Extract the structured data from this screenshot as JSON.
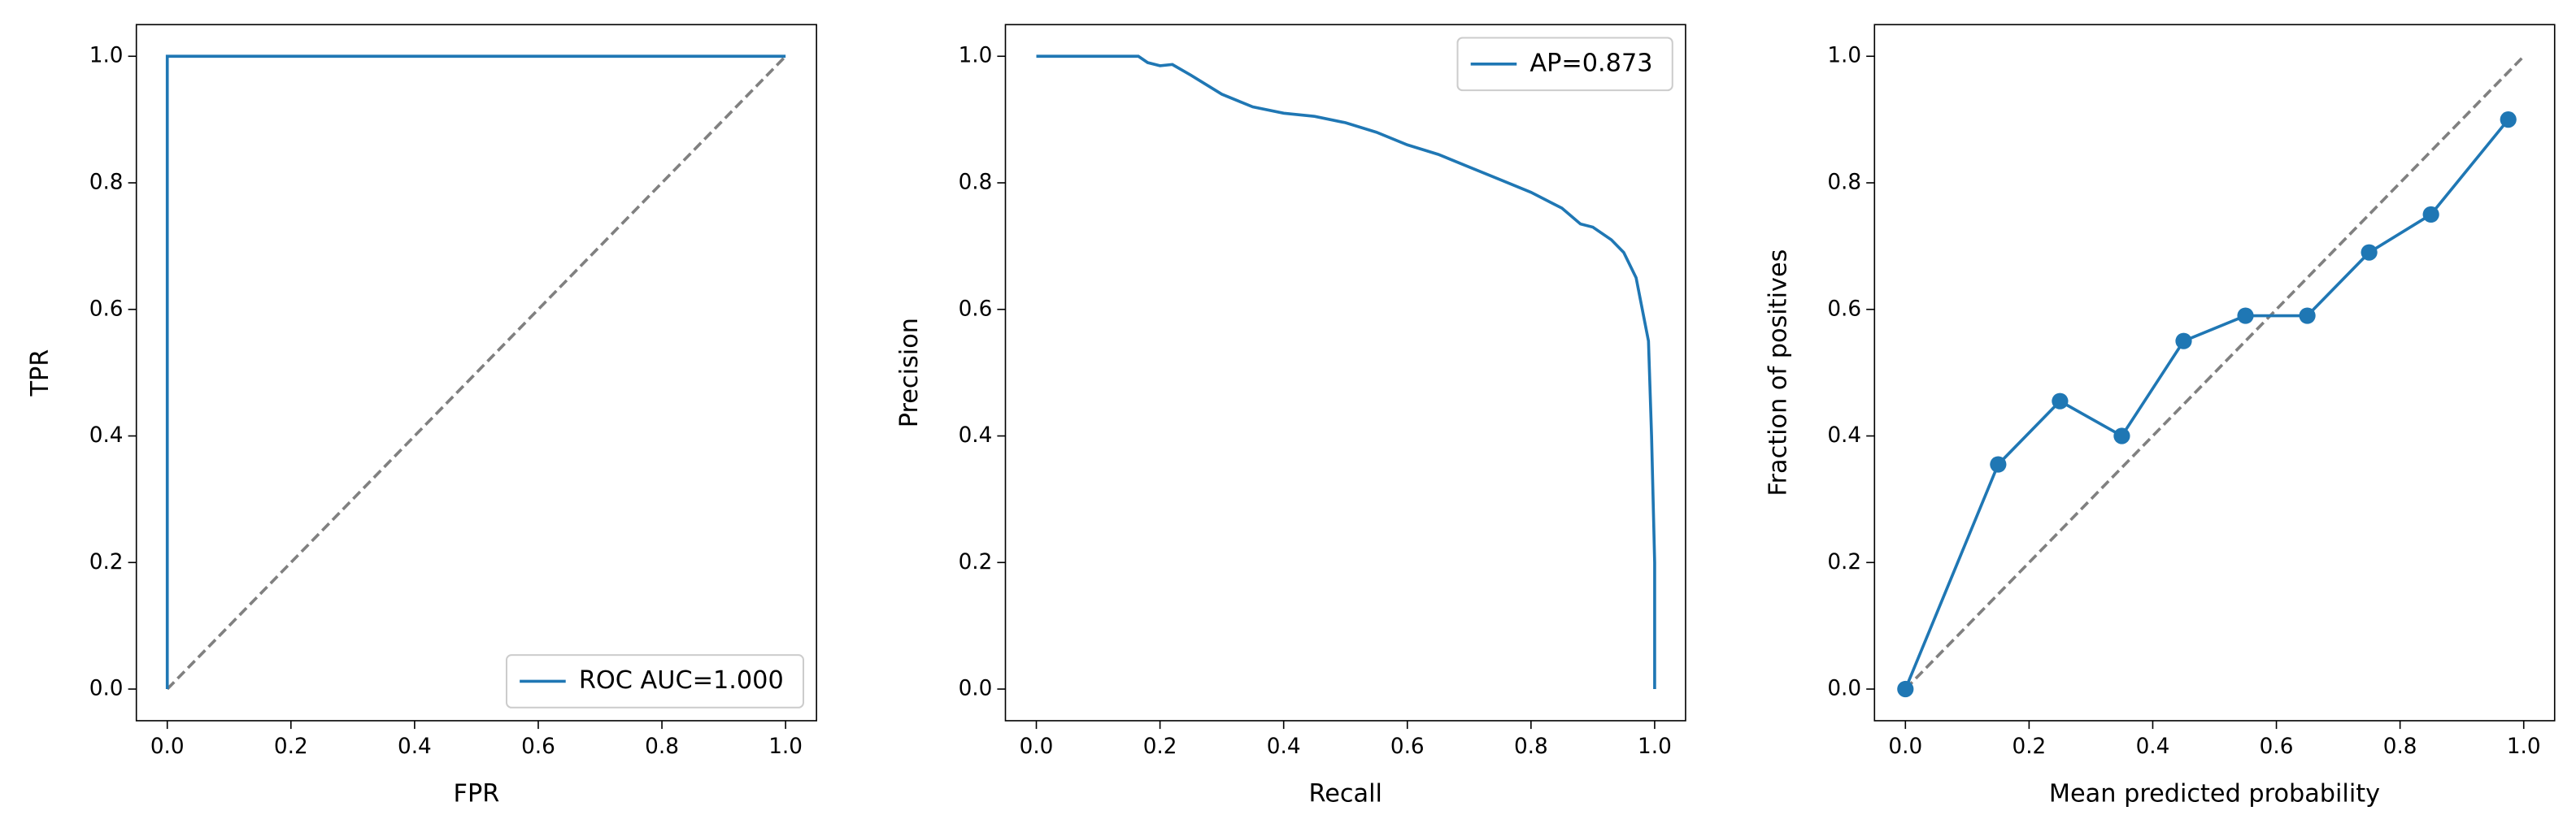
{
  "chart_data": [
    {
      "type": "line",
      "xlabel": "FPR",
      "ylabel": "TPR",
      "xlim": [
        -0.05,
        1.05
      ],
      "ylim": [
        -0.05,
        1.05
      ],
      "xticks": [
        {
          "value": 0,
          "label": "0.0"
        },
        {
          "value": 0.2,
          "label": "0.2"
        },
        {
          "value": 0.4,
          "label": "0.4"
        },
        {
          "value": 0.6,
          "label": "0.6"
        },
        {
          "value": 0.8,
          "label": "0.8"
        },
        {
          "value": 1,
          "label": "1.0"
        }
      ],
      "yticks": [
        {
          "value": 0,
          "label": "0.0"
        },
        {
          "value": 0.2,
          "label": "0.2"
        },
        {
          "value": 0.4,
          "label": "0.4"
        },
        {
          "value": 0.6,
          "label": "0.6"
        },
        {
          "value": 0.8,
          "label": "0.8"
        },
        {
          "value": 1,
          "label": "1.0"
        }
      ],
      "legend": "lower right",
      "series": [
        {
          "name": "ROC AUC=1.000",
          "color": "#1f77b4",
          "x": [
            0,
            0,
            1
          ],
          "values": [
            0,
            1,
            1
          ]
        }
      ],
      "reference_line": {
        "color": "#808080",
        "x": [
          0,
          1
        ],
        "values": [
          0,
          1
        ]
      }
    },
    {
      "type": "line",
      "xlabel": "Recall",
      "ylabel": "Precision",
      "xlim": [
        -0.05,
        1.05
      ],
      "ylim": [
        -0.05,
        1.05
      ],
      "xticks": [
        {
          "value": 0,
          "label": "0.0"
        },
        {
          "value": 0.2,
          "label": "0.2"
        },
        {
          "value": 0.4,
          "label": "0.4"
        },
        {
          "value": 0.6,
          "label": "0.6"
        },
        {
          "value": 0.8,
          "label": "0.8"
        },
        {
          "value": 1,
          "label": "1.0"
        }
      ],
      "yticks": [
        {
          "value": 0,
          "label": "0.0"
        },
        {
          "value": 0.2,
          "label": "0.2"
        },
        {
          "value": 0.4,
          "label": "0.4"
        },
        {
          "value": 0.6,
          "label": "0.6"
        },
        {
          "value": 0.8,
          "label": "0.8"
        },
        {
          "value": 1,
          "label": "1.0"
        }
      ],
      "legend": "upper right",
      "series": [
        {
          "name": "AP=0.873",
          "color": "#1f77b4",
          "x": [
            0,
            0.165,
            0.18,
            0.2,
            0.22,
            0.25,
            0.3,
            0.35,
            0.4,
            0.45,
            0.5,
            0.55,
            0.6,
            0.65,
            0.7,
            0.75,
            0.8,
            0.85,
            0.88,
            0.9,
            0.93,
            0.95,
            0.97,
            0.98,
            0.99,
            0.995,
            1,
            1
          ],
          "values": [
            1,
            1,
            0.99,
            0.985,
            0.987,
            0.97,
            0.94,
            0.92,
            0.91,
            0.905,
            0.895,
            0.88,
            0.86,
            0.845,
            0.825,
            0.805,
            0.785,
            0.76,
            0.735,
            0.73,
            0.71,
            0.69,
            0.65,
            0.6,
            0.55,
            0.4,
            0.2,
            0
          ]
        }
      ]
    },
    {
      "type": "line",
      "xlabel": "Mean predicted probability",
      "ylabel": "Fraction of positives",
      "xlim": [
        -0.05,
        1.05
      ],
      "ylim": [
        -0.05,
        1.05
      ],
      "xticks": [
        {
          "value": 0,
          "label": "0.0"
        },
        {
          "value": 0.2,
          "label": "0.2"
        },
        {
          "value": 0.4,
          "label": "0.4"
        },
        {
          "value": 0.6,
          "label": "0.6"
        },
        {
          "value": 0.8,
          "label": "0.8"
        },
        {
          "value": 1,
          "label": "1.0"
        }
      ],
      "yticks": [
        {
          "value": 0,
          "label": "0.0"
        },
        {
          "value": 0.2,
          "label": "0.2"
        },
        {
          "value": 0.4,
          "label": "0.4"
        },
        {
          "value": 0.6,
          "label": "0.6"
        },
        {
          "value": 0.8,
          "label": "0.8"
        },
        {
          "value": 1,
          "label": "1.0"
        }
      ],
      "markers": true,
      "series": [
        {
          "color": "#1f77b4",
          "x": [
            0,
            0.15,
            0.25,
            0.35,
            0.45,
            0.55,
            0.65,
            0.75,
            0.85,
            0.975
          ],
          "values": [
            0,
            0.355,
            0.455,
            0.4,
            0.55,
            0.59,
            0.59,
            0.69,
            0.75,
            0.9
          ]
        }
      ],
      "reference_line": {
        "color": "#808080",
        "x": [
          0,
          1
        ],
        "values": [
          0,
          1
        ]
      }
    }
  ]
}
